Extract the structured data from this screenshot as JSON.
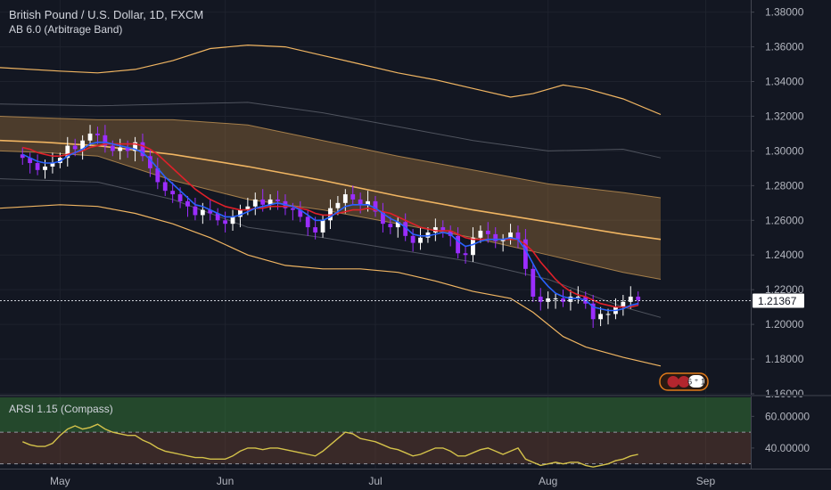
{
  "chart_data": [
    {
      "type": "candlestick",
      "title": "British Pound / U.S. Dollar, 1D, FXCM",
      "indicator_label": "AB 6.0 (Arbitrage Band)",
      "ylim": [
        1.16,
        1.387
      ],
      "y_ticks": [
        {
          "value": 1.38,
          "label": "1.38000"
        },
        {
          "value": 1.36,
          "label": "1.36000"
        },
        {
          "value": 1.34,
          "label": "1.34000"
        },
        {
          "value": 1.32,
          "label": "1.32000"
        },
        {
          "value": 1.3,
          "label": "1.30000"
        },
        {
          "value": 1.28,
          "label": "1.28000"
        },
        {
          "value": 1.26,
          "label": "1.26000"
        },
        {
          "value": 1.24,
          "label": "1.24000"
        },
        {
          "value": 1.22,
          "label": "1.22000"
        },
        {
          "value": 1.2,
          "label": "1.20000"
        },
        {
          "value": 1.18,
          "label": "1.18000"
        },
        {
          "value": 1.16,
          "label": "1.16000"
        }
      ],
      "last_price": {
        "value": 1.21367,
        "label": "1.21367"
      },
      "x_ticks": [
        {
          "value": 5,
          "label": "May"
        },
        {
          "value": 27,
          "label": "Jun"
        },
        {
          "value": 47,
          "label": "Jul"
        },
        {
          "value": 70,
          "label": "Aug"
        },
        {
          "value": 91,
          "label": "Sep"
        }
      ],
      "xlim": [
        -3,
        97
      ],
      "closes": [
        1.296,
        1.293,
        1.289,
        1.291,
        1.293,
        1.296,
        1.303,
        1.301,
        1.306,
        1.31,
        1.309,
        1.303,
        1.3,
        1.302,
        1.3,
        1.305,
        1.297,
        1.29,
        1.282,
        1.277,
        1.275,
        1.271,
        1.268,
        1.263,
        1.266,
        1.264,
        1.26,
        1.258,
        1.262,
        1.266,
        1.268,
        1.272,
        1.269,
        1.272,
        1.271,
        1.267,
        1.266,
        1.262,
        1.256,
        1.253,
        1.26,
        1.267,
        1.27,
        1.275,
        1.272,
        1.269,
        1.271,
        1.265,
        1.258,
        1.256,
        1.259,
        1.251,
        1.247,
        1.25,
        1.253,
        1.256,
        1.254,
        1.251,
        1.241,
        1.24,
        1.25,
        1.254,
        1.252,
        1.248,
        1.249,
        1.253,
        1.249,
        1.232,
        1.216,
        1.213,
        1.215,
        1.215,
        1.213,
        1.216,
        1.216,
        1.212,
        1.203,
        1.206,
        1.206,
        1.21,
        1.213,
        1.216,
        1.214
      ],
      "ma_fast": [
        1.298,
        1.296,
        1.294,
        1.293,
        1.293,
        1.294,
        1.297,
        1.299,
        1.301,
        1.304,
        1.305,
        1.305,
        1.304,
        1.303,
        1.302,
        1.301,
        1.299,
        1.295,
        1.29,
        1.285,
        1.281,
        1.277,
        1.273,
        1.269,
        1.268,
        1.266,
        1.264,
        1.262,
        1.262,
        1.263,
        1.265,
        1.267,
        1.268,
        1.269,
        1.27,
        1.269,
        1.268,
        1.266,
        1.263,
        1.26,
        1.26,
        1.262,
        1.265,
        1.268,
        1.269,
        1.269,
        1.269,
        1.267,
        1.264,
        1.261,
        1.259,
        1.256,
        1.252,
        1.251,
        1.251,
        1.252,
        1.253,
        1.252,
        1.248,
        1.245,
        1.246,
        1.248,
        1.249,
        1.249,
        1.249,
        1.25,
        1.249,
        1.243,
        1.235,
        1.227,
        1.222,
        1.218,
        1.216,
        1.215,
        1.215,
        1.214,
        1.21,
        1.209,
        1.208,
        1.208,
        1.209,
        1.211,
        1.212
      ],
      "ma_slow": [
        1.302,
        1.301,
        1.299,
        1.298,
        1.297,
        1.297,
        1.298,
        1.299,
        1.3,
        1.302,
        1.303,
        1.304,
        1.304,
        1.304,
        1.304,
        1.304,
        1.303,
        1.301,
        1.298,
        1.294,
        1.29,
        1.286,
        1.282,
        1.278,
        1.275,
        1.272,
        1.27,
        1.268,
        1.267,
        1.266,
        1.266,
        1.267,
        1.267,
        1.268,
        1.268,
        1.268,
        1.268,
        1.267,
        1.266,
        1.264,
        1.263,
        1.263,
        1.264,
        1.265,
        1.266,
        1.266,
        1.267,
        1.266,
        1.265,
        1.264,
        1.262,
        1.26,
        1.258,
        1.256,
        1.255,
        1.254,
        1.254,
        1.254,
        1.252,
        1.25,
        1.249,
        1.249,
        1.249,
        1.249,
        1.249,
        1.249,
        1.249,
        1.246,
        1.242,
        1.236,
        1.231,
        1.226,
        1.222,
        1.219,
        1.217,
        1.216,
        1.214,
        1.212,
        1.211,
        1.21,
        1.21,
        1.21,
        1.211
      ],
      "band_center": {
        "x": [
          -3,
          3,
          10,
          20,
          30,
          40,
          50,
          60,
          70,
          80,
          85
        ],
        "y": [
          1.306,
          1.305,
          1.303,
          1.298,
          1.291,
          1.283,
          1.274,
          1.266,
          1.259,
          1.252,
          1.249
        ]
      },
      "band_upper": {
        "x": [
          -3,
          3,
          10,
          20,
          30,
          40,
          50,
          60,
          70,
          80,
          85
        ],
        "y": [
          1.32,
          1.319,
          1.318,
          1.318,
          1.315,
          1.306,
          1.297,
          1.289,
          1.281,
          1.276,
          1.273
        ]
      },
      "band_lower": {
        "x": [
          -3,
          3,
          10,
          20,
          30,
          40,
          50,
          60,
          70,
          80,
          85
        ],
        "y": [
          1.3,
          1.299,
          1.297,
          1.283,
          1.272,
          1.266,
          1.258,
          1.25,
          1.24,
          1.23,
          1.226
        ]
      },
      "outer_upper": {
        "x": [
          -3,
          5,
          10,
          15,
          20,
          25,
          30,
          35,
          40,
          45,
          50,
          55,
          60,
          65,
          68,
          72,
          75,
          80,
          85
        ],
        "y": [
          1.348,
          1.346,
          1.345,
          1.347,
          1.352,
          1.359,
          1.361,
          1.36,
          1.355,
          1.35,
          1.345,
          1.341,
          1.336,
          1.331,
          1.333,
          1.338,
          1.336,
          1.33,
          1.321
        ]
      },
      "outer_lower": {
        "x": [
          -3,
          5,
          10,
          15,
          20,
          25,
          30,
          35,
          40,
          45,
          50,
          55,
          60,
          65,
          68,
          72,
          75,
          80,
          85
        ],
        "y": [
          1.267,
          1.269,
          1.268,
          1.264,
          1.258,
          1.25,
          1.24,
          1.234,
          1.232,
          1.232,
          1.23,
          1.225,
          1.219,
          1.215,
          1.207,
          1.193,
          1.187,
          1.181,
          1.176
        ]
      },
      "mid_upper": {
        "x": [
          -3,
          10,
          20,
          30,
          40,
          50,
          60,
          70,
          80,
          85
        ],
        "y": [
          1.327,
          1.326,
          1.327,
          1.328,
          1.322,
          1.314,
          1.306,
          1.3,
          1.301,
          1.296
        ]
      },
      "mid_lower": {
        "x": [
          -3,
          10,
          20,
          30,
          40,
          50,
          60,
          70,
          80,
          85
        ],
        "y": [
          1.284,
          1.282,
          1.272,
          1.256,
          1.25,
          1.243,
          1.236,
          1.226,
          1.21,
          1.204
        ]
      },
      "colors": {
        "bull": "#ffffff",
        "bear": "#9b2dff",
        "ma_fast": "#2962ff",
        "ma_slow": "#e0202a",
        "band": "#f0b562",
        "band_fill": "rgba(170,120,60,0.38)"
      }
    },
    {
      "type": "line",
      "title": "ARSI 1.15 (Compass)",
      "ylim": [
        27,
        72
      ],
      "y_ticks": [
        {
          "value": 60,
          "label": "60.00000"
        },
        {
          "value": 40,
          "label": "40.00000"
        }
      ],
      "upper_level": 50,
      "lower_level": 30,
      "values": [
        44,
        42,
        41,
        41,
        43,
        48,
        52,
        54,
        52,
        53,
        55,
        52,
        50,
        49,
        48,
        48,
        45,
        43,
        40,
        38,
        37,
        36,
        35,
        34,
        34,
        33,
        33,
        33,
        35,
        38,
        40,
        40,
        39,
        40,
        40,
        39,
        38,
        37,
        36,
        35,
        38,
        42,
        46,
        50,
        49,
        46,
        45,
        44,
        42,
        40,
        39,
        37,
        35,
        36,
        38,
        40,
        40,
        38,
        35,
        35,
        37,
        39,
        40,
        38,
        36,
        38,
        40,
        33,
        31,
        29,
        30,
        31,
        30,
        31,
        31,
        29,
        28,
        29,
        30,
        32,
        33,
        35,
        36
      ],
      "colors": {
        "line": "#d4c24a",
        "upper_zone": "rgba(60,140,60,0.42)",
        "lower_zone": "rgba(120,70,50,0.38)"
      }
    }
  ]
}
